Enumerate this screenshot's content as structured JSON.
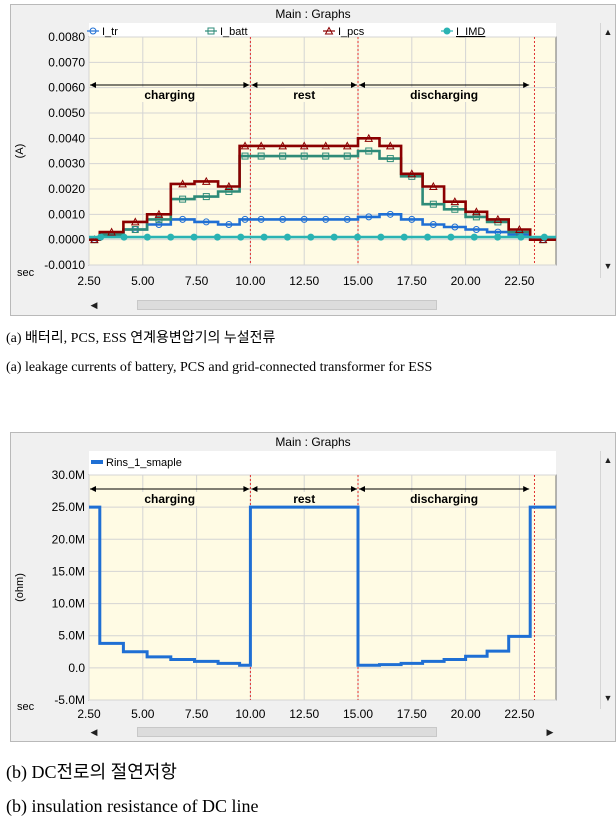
{
  "window_title": "Main : Graphs",
  "icons": {
    "scroll_up": "triangle-up-icon",
    "scroll_down": "triangle-down-icon",
    "scroll_left": "triangle-left-icon",
    "scroll_right": "triangle-right-icon"
  },
  "chart_data": [
    {
      "type": "line",
      "title": "",
      "xlabel": "sec",
      "ylabel": "(A)",
      "xlim": [
        2.5,
        24.2
      ],
      "ylim": [
        -0.001,
        0.008
      ],
      "grid": true,
      "legend_position": "top",
      "x_ticks": [
        "2.50",
        "5.00",
        "7.50",
        "10.00",
        "12.50",
        "15.00",
        "17.50",
        "20.00",
        "22.50"
      ],
      "y_ticks": [
        "0.0080",
        "0.0070",
        "0.0060",
        "0.0050",
        "0.0040",
        "0.0030",
        "0.0020",
        "0.0010",
        "0.0000",
        "-0.0010"
      ],
      "phases": [
        {
          "label": "charging",
          "start": 2.5,
          "end": 10.0
        },
        {
          "label": "rest",
          "start": 10.0,
          "end": 15.0
        },
        {
          "label": "discharging",
          "start": 15.0,
          "end": 23.0
        }
      ],
      "phase_boundaries": [
        10.0,
        15.0,
        23.2
      ],
      "series": [
        {
          "name": "I_tr",
          "color": "#1f6fd4",
          "marker": "circle-open",
          "x": [
            2.5,
            3.0,
            3.0,
            4.1,
            4.1,
            5.2,
            5.2,
            6.3,
            6.3,
            7.4,
            7.4,
            8.5,
            8.5,
            9.5,
            9.5,
            10.0,
            15.0,
            15.0,
            16.0,
            16.0,
            17.0,
            17.0,
            18.0,
            18.0,
            19.0,
            19.0,
            20.0,
            20.0,
            21.0,
            21.0,
            22.0,
            22.0,
            23.0,
            23.0,
            24.2
          ],
          "y": [
            0,
            0,
            0.0002,
            0.0002,
            0.0004,
            0.0004,
            0.0006,
            0.0006,
            0.0008,
            0.0008,
            0.0007,
            0.0007,
            0.0006,
            0.0006,
            0.0008,
            0.0008,
            0.0008,
            0.0009,
            0.0009,
            0.001,
            0.001,
            0.0008,
            0.0008,
            0.0006,
            0.0006,
            0.0005,
            0.0005,
            0.0004,
            0.0004,
            0.0003,
            0.0003,
            0.0002,
            0.0002,
            0,
            0
          ]
        },
        {
          "name": "I_batt",
          "color": "#2e8b78",
          "marker": "square-open",
          "x": [
            2.5,
            3.0,
            3.0,
            4.1,
            4.1,
            5.2,
            5.2,
            6.3,
            6.3,
            7.4,
            7.4,
            8.5,
            8.5,
            9.5,
            9.5,
            10.0,
            15.0,
            15.0,
            16.0,
            16.0,
            17.0,
            17.0,
            18.0,
            18.0,
            19.0,
            19.0,
            20.0,
            20.0,
            21.0,
            21.0,
            22.0,
            22.0,
            23.0,
            23.0,
            24.2
          ],
          "y": [
            0,
            0,
            0.0002,
            0.0002,
            0.0004,
            0.0004,
            0.0008,
            0.0008,
            0.0016,
            0.0016,
            0.0017,
            0.0017,
            0.0019,
            0.0019,
            0.0033,
            0.0033,
            0.0033,
            0.0035,
            0.0035,
            0.0032,
            0.0032,
            0.0025,
            0.0025,
            0.0014,
            0.0014,
            0.0012,
            0.0012,
            0.0009,
            0.0009,
            0.0007,
            0.0007,
            0.0003,
            0.0003,
            0,
            0
          ]
        },
        {
          "name": "I_pcs",
          "color": "#8b0000",
          "marker": "triangle-open",
          "x": [
            2.5,
            3.0,
            3.0,
            4.1,
            4.1,
            5.2,
            5.2,
            6.3,
            6.3,
            7.4,
            7.4,
            8.5,
            8.5,
            9.5,
            9.5,
            10.0,
            15.0,
            15.0,
            16.0,
            16.0,
            17.0,
            17.0,
            18.0,
            18.0,
            19.0,
            19.0,
            20.0,
            20.0,
            21.0,
            21.0,
            22.0,
            22.0,
            23.0,
            23.0,
            24.2
          ],
          "y": [
            0,
            0,
            0.0003,
            0.0003,
            0.0007,
            0.0007,
            0.001,
            0.001,
            0.0022,
            0.0022,
            0.0023,
            0.0023,
            0.0021,
            0.0021,
            0.0037,
            0.0037,
            0.0037,
            0.004,
            0.004,
            0.0037,
            0.0037,
            0.0026,
            0.0026,
            0.0021,
            0.0021,
            0.0015,
            0.0015,
            0.0011,
            0.0011,
            0.0008,
            0.0008,
            0.0004,
            0.0004,
            0,
            0
          ]
        },
        {
          "name": "I_IMD",
          "color": "#2ab3b3",
          "marker": "circle-filled",
          "x": [
            2.5,
            24.2
          ],
          "y": [
            0.0001,
            0.0001
          ]
        }
      ]
    },
    {
      "type": "line",
      "title": "",
      "xlabel": "sec",
      "ylabel": "(ohm)",
      "xlim": [
        2.5,
        24.2
      ],
      "ylim": [
        -5,
        30
      ],
      "grid": true,
      "legend_position": "top-left",
      "x_ticks": [
        "2.50",
        "5.00",
        "7.50",
        "10.00",
        "12.50",
        "15.00",
        "17.50",
        "20.00",
        "22.50"
      ],
      "y_ticks": [
        "30.0M",
        "25.0M",
        "20.0M",
        "15.0M",
        "10.0M",
        "5.0M",
        "0.0",
        "-5.0M"
      ],
      "phases": [
        {
          "label": "charging",
          "start": 2.5,
          "end": 10.0
        },
        {
          "label": "rest",
          "start": 10.0,
          "end": 15.0
        },
        {
          "label": "discharging",
          "start": 15.0,
          "end": 23.0
        }
      ],
      "phase_boundaries": [
        10.0,
        15.0,
        23.2
      ],
      "series": [
        {
          "name": "Rins_1_smaple",
          "color": "#1f6fd4",
          "marker": "none",
          "x": [
            2.5,
            3.0,
            3.0,
            4.1,
            4.1,
            5.2,
            5.2,
            6.3,
            6.3,
            7.4,
            7.4,
            8.5,
            8.5,
            9.5,
            9.5,
            10.0,
            10.0,
            15.0,
            15.0,
            16.0,
            16.0,
            17.0,
            17.0,
            18.0,
            18.0,
            19.0,
            19.0,
            20.0,
            20.0,
            21.0,
            21.0,
            22.0,
            22.0,
            23.0,
            23.0,
            24.2
          ],
          "y": [
            25,
            25,
            3.8,
            3.8,
            2.5,
            2.5,
            1.7,
            1.7,
            1.3,
            1.3,
            1.0,
            1.0,
            0.7,
            0.7,
            0.4,
            0.4,
            25,
            25,
            0.4,
            0.4,
            0.5,
            0.5,
            0.7,
            0.7,
            1.0,
            1.0,
            1.3,
            1.3,
            1.8,
            1.8,
            2.6,
            2.6,
            4.9,
            4.9,
            25,
            25
          ]
        }
      ]
    }
  ],
  "captions": {
    "a_korean": "(a) 배터리, PCS, ESS 연계용변압기의 누설전류",
    "a_english": "(a) leakage currents of battery, PCS and grid-connected transformer for ESS",
    "b_korean": "(b) DC전로의 절연저항",
    "b_english": "(b) insulation resistance of DC line"
  }
}
